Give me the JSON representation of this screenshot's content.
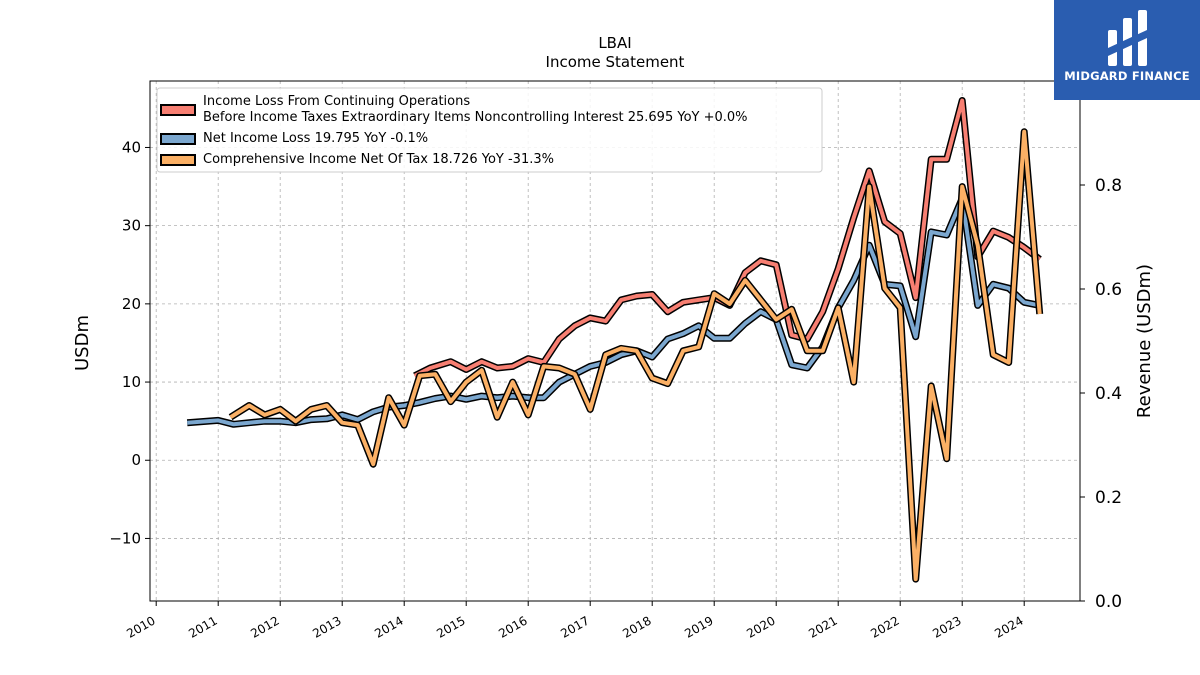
{
  "brand": {
    "name": "MIDGARD FINANCE",
    "icon": "midgard-logo-icon",
    "background": "#2a5db0"
  },
  "chart_data": {
    "type": "line",
    "title": "LBAI",
    "subtitle": "Income Statement",
    "ylabel": "USDm",
    "ylabel_right": "Revenue (USDm)",
    "ylim": [
      -18,
      48.5
    ],
    "ylim_right": [
      0,
      1.0
    ],
    "yticks": [
      -10,
      0,
      10,
      20,
      30,
      40
    ],
    "yticks_right": [
      0.0,
      0.2,
      0.4,
      0.6,
      0.8
    ],
    "xlim": [
      2009.9,
      2024.9
    ],
    "xticks": [
      "2010",
      "2011",
      "2012",
      "2013",
      "2014",
      "2015",
      "2016",
      "2017",
      "2018",
      "2019",
      "2020",
      "2021",
      "2022",
      "2023",
      "2024"
    ],
    "grid": true,
    "legend_position": "top-left",
    "series": [
      {
        "name": "Income Loss From Continuing Operations\nBefore Income Taxes Extraordinary Items Noncontrolling Interest  25.695 YoY +0.0%",
        "color": "#f77f72",
        "x": [
          2014.17,
          2014.42,
          2014.75,
          2015.0,
          2015.25,
          2015.5,
          2015.75,
          2016.0,
          2016.25,
          2016.5,
          2016.75,
          2017.0,
          2017.25,
          2017.5,
          2017.75,
          2018.0,
          2018.25,
          2018.5,
          2018.75,
          2019.0,
          2019.25,
          2019.5,
          2019.75,
          2020.0,
          2020.25,
          2020.5,
          2020.75,
          2021.0,
          2021.25,
          2021.5,
          2021.75,
          2022.0,
          2022.25,
          2022.5,
          2022.75,
          2023.0,
          2023.25,
          2023.5,
          2023.75,
          2024.0,
          2024.25
        ],
        "y": [
          10.8,
          11.8,
          12.6,
          11.6,
          12.6,
          11.8,
          12.0,
          13.0,
          12.5,
          15.5,
          17.2,
          18.2,
          17.8,
          20.5,
          21.0,
          21.2,
          19.0,
          20.2,
          20.5,
          20.8,
          19.8,
          24.0,
          25.5,
          25.0,
          16.0,
          15.5,
          19.0,
          24.5,
          31.0,
          37.0,
          30.5,
          29.0,
          20.8,
          38.5,
          38.5,
          46.0,
          26.0,
          29.3,
          28.5,
          27.2,
          25.7
        ]
      },
      {
        "name": "Net Income Loss  19.795 YoY -0.1%",
        "color": "#7ba7cf",
        "x": [
          2010.5,
          2011.0,
          2011.25,
          2011.5,
          2011.75,
          2012.0,
          2012.25,
          2012.5,
          2012.75,
          2013.0,
          2013.25,
          2013.5,
          2013.75,
          2014.0,
          2014.25,
          2014.5,
          2014.75,
          2015.0,
          2015.25,
          2015.5,
          2015.75,
          2016.0,
          2016.25,
          2016.5,
          2016.75,
          2017.0,
          2017.25,
          2017.5,
          2017.75,
          2018.0,
          2018.25,
          2018.5,
          2018.75,
          2019.0,
          2019.25,
          2019.5,
          2019.75,
          2020.0,
          2020.25,
          2020.5,
          2020.75,
          2021.0,
          2021.25,
          2021.5,
          2021.75,
          2022.0,
          2022.25,
          2022.5,
          2022.75,
          2023.0,
          2023.25,
          2023.5,
          2023.75,
          2024.0,
          2024.25
        ],
        "y": [
          4.8,
          5.1,
          4.6,
          4.8,
          5.0,
          5.0,
          4.8,
          5.2,
          5.3,
          5.8,
          5.2,
          6.2,
          6.8,
          7.0,
          7.4,
          7.9,
          8.2,
          7.8,
          8.2,
          8.0,
          8.2,
          8.0,
          8.0,
          10.0,
          11.0,
          12.0,
          12.5,
          13.5,
          14.0,
          13.2,
          15.5,
          16.2,
          17.2,
          15.6,
          15.6,
          17.5,
          19.0,
          18.0,
          12.2,
          11.8,
          14.5,
          19.5,
          23.0,
          27.5,
          22.5,
          22.3,
          15.8,
          29.2,
          28.8,
          33.5,
          19.8,
          22.5,
          22.0,
          20.2,
          19.8
        ]
      },
      {
        "name": "Comprehensive Income Net Of Tax  18.726 YoY -31.3%",
        "color": "#fbb065",
        "x": [
          2011.2,
          2011.5,
          2011.75,
          2012.0,
          2012.25,
          2012.5,
          2012.75,
          2013.0,
          2013.25,
          2013.5,
          2013.75,
          2014.0,
          2014.25,
          2014.5,
          2014.75,
          2015.0,
          2015.25,
          2015.5,
          2015.75,
          2016.0,
          2016.25,
          2016.5,
          2016.75,
          2017.0,
          2017.25,
          2017.5,
          2017.75,
          2018.0,
          2018.25,
          2018.5,
          2018.75,
          2019.0,
          2019.25,
          2019.5,
          2019.75,
          2020.0,
          2020.25,
          2020.5,
          2020.75,
          2021.0,
          2021.25,
          2021.5,
          2021.75,
          2022.0,
          2022.25,
          2022.5,
          2022.75,
          2023.0,
          2023.25,
          2023.5,
          2023.75,
          2024.0,
          2024.25
        ],
        "y": [
          5.5,
          7.0,
          5.8,
          6.5,
          5.0,
          6.5,
          7.0,
          4.8,
          4.5,
          -0.5,
          8.0,
          4.5,
          10.8,
          11.0,
          7.5,
          10.0,
          11.5,
          5.5,
          10.0,
          5.8,
          12.0,
          11.8,
          11.0,
          6.5,
          13.5,
          14.3,
          14.0,
          10.5,
          9.8,
          14.0,
          14.5,
          21.3,
          20.0,
          23.0,
          20.5,
          18.0,
          19.3,
          14.0,
          14.0,
          19.5,
          10.0,
          35.0,
          22.0,
          19.5,
          -15.2,
          9.5,
          0.2,
          35.0,
          27.5,
          13.5,
          12.5,
          42.0,
          18.7
        ]
      }
    ]
  }
}
